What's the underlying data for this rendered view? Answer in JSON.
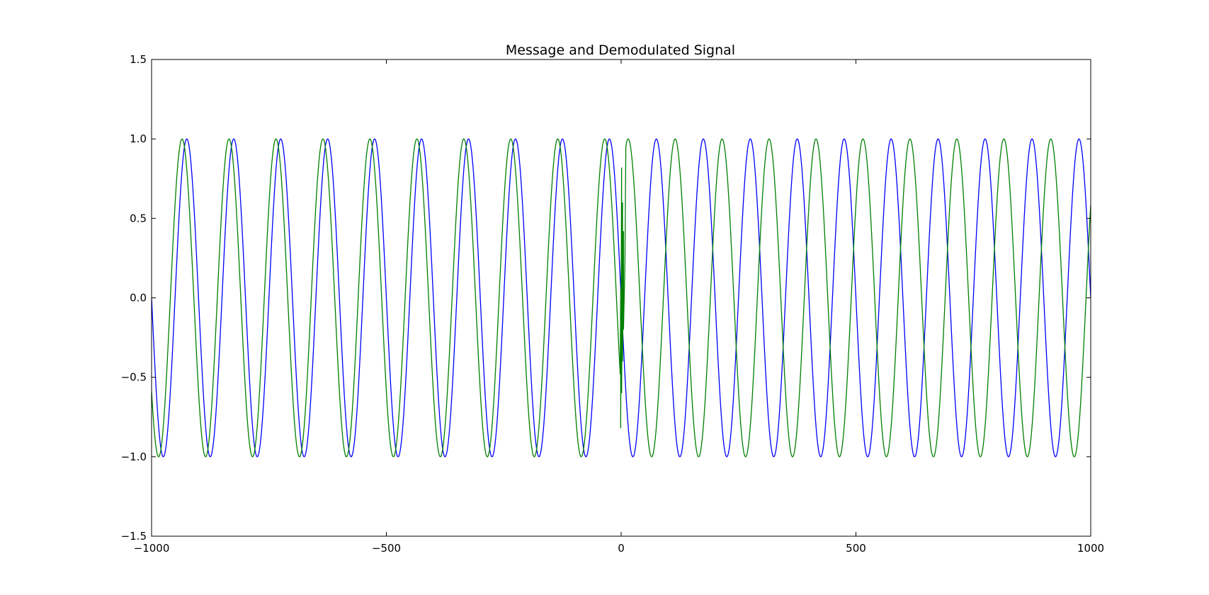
{
  "chart_data": {
    "type": "line",
    "title": "Message and Demodulated Signal",
    "xlabel": "",
    "ylabel": "",
    "xlim": [
      -1000,
      1000
    ],
    "ylim": [
      -1.5,
      1.5
    ],
    "grid": false,
    "legend": "none",
    "x_ticks": [
      -1000,
      -500,
      0,
      500,
      1000
    ],
    "x_tick_labels": [
      "−1000",
      "−500",
      "0",
      "500",
      "1000"
    ],
    "y_ticks": [
      1.5,
      1.0,
      0.5,
      0.0,
      -0.5,
      -1.0,
      -1.5
    ],
    "y_tick_labels": [
      "1.5",
      "1.0",
      "0.5",
      "0.0",
      "−0.5",
      "−1.0",
      "−1.5"
    ],
    "series": [
      {
        "color": "#0000ff",
        "function": "cos",
        "amplitude": 1.0,
        "period": 100,
        "phase_x": -25,
        "x_range": [
          -1000,
          1000
        ]
      },
      {
        "color": "#008000",
        "function": "cos",
        "amplitude": 1.0,
        "period": 100,
        "left_phase_x": -35,
        "right_phase_x": 15,
        "x_range": [
          -1000,
          1000
        ],
        "transient": {
          "x_range": [
            -2,
            10
          ],
          "points": [
            [
              -1,
              0.05
            ],
            [
              -1,
              -0.82
            ],
            [
              1,
              0.82
            ],
            [
              1,
              -0.6
            ],
            [
              3,
              0.6
            ],
            [
              3,
              -0.4
            ],
            [
              5,
              0.42
            ],
            [
              5,
              -0.2
            ],
            [
              8,
              0.2
            ]
          ]
        }
      }
    ]
  }
}
